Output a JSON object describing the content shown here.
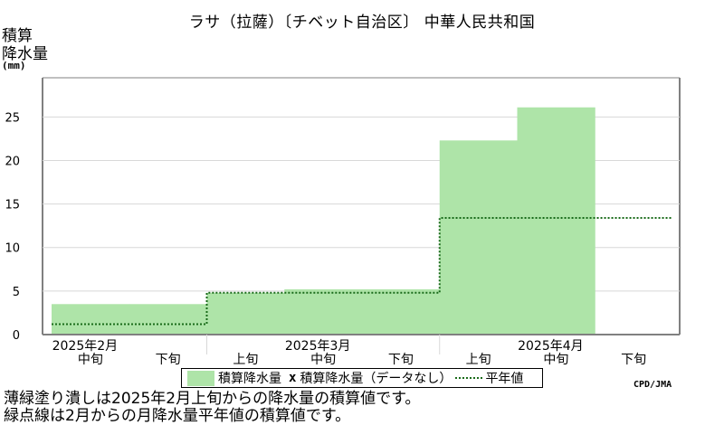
{
  "title": "ラサ（拉薩）〔チベット自治区〕 中華人民共和国",
  "y_label_line1": "積算",
  "y_label_line2": "降水量",
  "y_unit": "(mm)",
  "credit": "CPD/JMA",
  "legend": {
    "bar_label": "積算降水量",
    "missing_mark": "x",
    "missing_label": "積算降水量（データなし）",
    "normal_label": "平年値"
  },
  "notes": [
    "薄緑塗り潰しは2025年2月上旬からの降水量の積算値です。",
    "緑点線は2月からの月降水量平年値の積算値です。"
  ],
  "colors": {
    "bar_fill": "#aee4a8",
    "normal_line": "#1a6b1a",
    "grid": "#d8d8d8",
    "axis": "#808080"
  },
  "chart_data": {
    "type": "bar",
    "categories": [
      "2025年2月 中旬",
      "2025年2月 下旬",
      "2025年3月 上旬",
      "2025年3月 中旬",
      "2025年3月 下旬",
      "2025年4月 上旬",
      "2025年4月 中旬",
      "2025年4月 下旬"
    ],
    "period_labels": [
      "中旬",
      "下旬",
      "上旬",
      "中旬",
      "下旬",
      "上旬",
      "中旬",
      "下旬"
    ],
    "month_labels": [
      {
        "label": "2025年2月",
        "index": 0
      },
      {
        "label": "2025年3月",
        "index": 3
      },
      {
        "label": "2025年4月",
        "index": 6
      }
    ],
    "series": [
      {
        "name": "積算降水量",
        "values": [
          3.5,
          3.5,
          4.8,
          5.2,
          5.2,
          22.3,
          26.1,
          null
        ]
      },
      {
        "name": "平年値",
        "monthly_cumulative": [
          {
            "month": "2025年2月",
            "value": 1.2
          },
          {
            "month": "2025年3月",
            "value": 4.8
          },
          {
            "month": "2025年4月",
            "value": 13.4
          }
        ]
      }
    ],
    "yticks": [
      0,
      5,
      10,
      15,
      20,
      25
    ],
    "ylim": [
      0,
      29.5
    ],
    "grid": true
  }
}
